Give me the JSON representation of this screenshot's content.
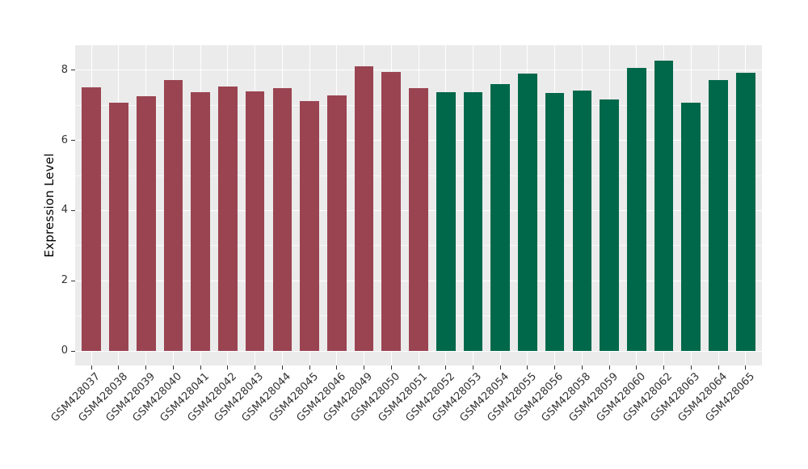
{
  "chart_data": {
    "type": "bar",
    "title": "",
    "xlabel": "",
    "ylabel": "Expression Level",
    "categories": [
      "GSM428037",
      "GSM428038",
      "GSM428039",
      "GSM428040",
      "GSM428041",
      "GSM428042",
      "GSM428043",
      "GSM428044",
      "GSM428045",
      "GSM428046",
      "GSM428049",
      "GSM428050",
      "GSM428051",
      "GSM428052",
      "GSM428053",
      "GSM428054",
      "GSM428055",
      "GSM428056",
      "GSM428058",
      "GSM428059",
      "GSM428060",
      "GSM428062",
      "GSM428063",
      "GSM428064",
      "GSM428065"
    ],
    "values": [
      7.52,
      7.08,
      7.25,
      7.73,
      7.37,
      7.54,
      7.4,
      7.48,
      7.13,
      7.27,
      8.1,
      7.96,
      7.48,
      7.38,
      7.37,
      7.6,
      7.9,
      7.36,
      7.43,
      7.17,
      8.06,
      8.28,
      7.08,
      7.71,
      7.93
    ],
    "groups": [
      "group1",
      "group1",
      "group1",
      "group1",
      "group1",
      "group1",
      "group1",
      "group1",
      "group1",
      "group1",
      "group1",
      "group1",
      "group1",
      "group2",
      "group2",
      "group2",
      "group2",
      "group2",
      "group2",
      "group2",
      "group2",
      "group2",
      "group2",
      "group2",
      "group2"
    ],
    "group_colors": {
      "group1": "#9A4452",
      "group2": "#00684A"
    },
    "y_ticks": [
      0,
      2,
      4,
      6,
      8
    ],
    "y_minor_ticks": [
      1,
      3,
      5,
      7
    ],
    "ylim": [
      -0.41,
      8.71
    ],
    "grid": true,
    "legend": "none",
    "bar_width_frac": 0.7,
    "x_tick_label_angle": -45,
    "colors": {
      "panel_bg": "#EBEBEB",
      "grid_major": "#FFFFFF",
      "grid_minor": "rgba(255,255,255,0.65)",
      "axis_text": "#333333",
      "tick_mark": "#333333",
      "figure_bg": "#FFFFFF"
    }
  }
}
